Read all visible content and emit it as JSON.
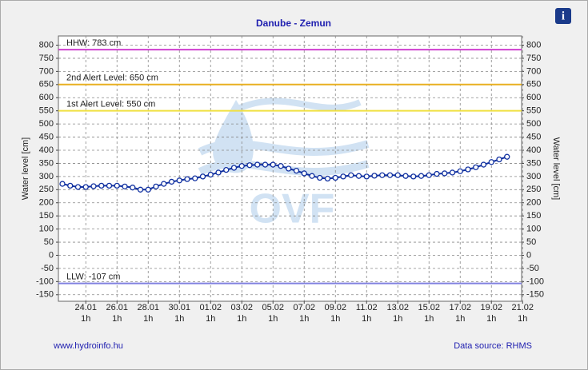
{
  "chart_data": {
    "type": "line",
    "title": "Danube - Zemun",
    "y_label": "Water level [cm]",
    "ylim": [
      -175,
      835
    ],
    "yticks": [
      -150,
      -100,
      -50,
      0,
      50,
      100,
      150,
      200,
      250,
      300,
      350,
      400,
      450,
      500,
      550,
      600,
      650,
      700,
      750,
      800
    ],
    "grid": true,
    "categories": [
      null,
      null,
      null,
      "24.01",
      null,
      null,
      null,
      "26.01",
      null,
      null,
      null,
      "28.01",
      null,
      null,
      null,
      "30.01",
      null,
      null,
      null,
      "01.02",
      null,
      null,
      null,
      "03.02",
      null,
      null,
      null,
      "05.02",
      null,
      null,
      null,
      "07.02",
      null,
      null,
      null,
      "09.02",
      null,
      null,
      null,
      "11.02",
      null,
      null,
      null,
      "13.02",
      null,
      null,
      null,
      "15.02",
      null,
      null,
      null,
      "17.02",
      null,
      null,
      null,
      "19.02",
      null,
      null,
      null,
      "21.02"
    ],
    "x_tick_time": "1h",
    "series": [
      {
        "name": "Water level",
        "color": "#1030a0",
        "values": [
          272,
          265,
          260,
          260,
          263,
          265,
          265,
          265,
          262,
          258,
          250,
          250,
          262,
          272,
          280,
          285,
          290,
          293,
          300,
          307,
          315,
          325,
          333,
          340,
          343,
          345,
          345,
          345,
          340,
          330,
          322,
          312,
          302,
          295,
          292,
          295,
          300,
          305,
          302,
          300,
          303,
          305,
          305,
          305,
          302,
          300,
          302,
          305,
          310,
          312,
          315,
          320,
          327,
          335,
          345,
          355,
          365,
          375,
          null,
          null
        ]
      }
    ],
    "reference_lines": [
      {
        "label": "HHW: 783 cm",
        "value": 783,
        "color": "#d040d0"
      },
      {
        "label": "2nd Alert Level: 650 cm",
        "value": 650,
        "color": "#e8b020"
      },
      {
        "label": "1st Alert Level: 550 cm",
        "value": 550,
        "color": "#f0e040"
      },
      {
        "label": "LLW: -107 cm",
        "value": -107,
        "color": "#8080e0"
      }
    ],
    "watermark": "OVF",
    "footer_left": "www.hydroinfo.hu",
    "footer_right": "Data source: RHMS",
    "info_icon": "i"
  }
}
